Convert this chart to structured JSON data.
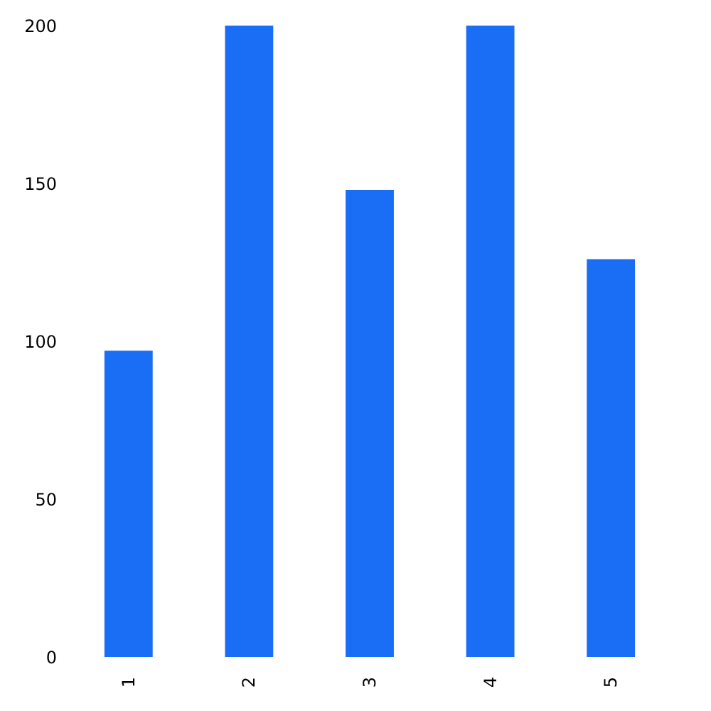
{
  "chart_data": {
    "type": "bar",
    "categories": [
      "1",
      "2",
      "3",
      "4",
      "5"
    ],
    "values": [
      97,
      200,
      148,
      200,
      126
    ],
    "color": "#1a6ef5",
    "ylim": [
      0,
      200
    ],
    "yticks": [
      0,
      50,
      100,
      150,
      200
    ],
    "grid": false
  }
}
